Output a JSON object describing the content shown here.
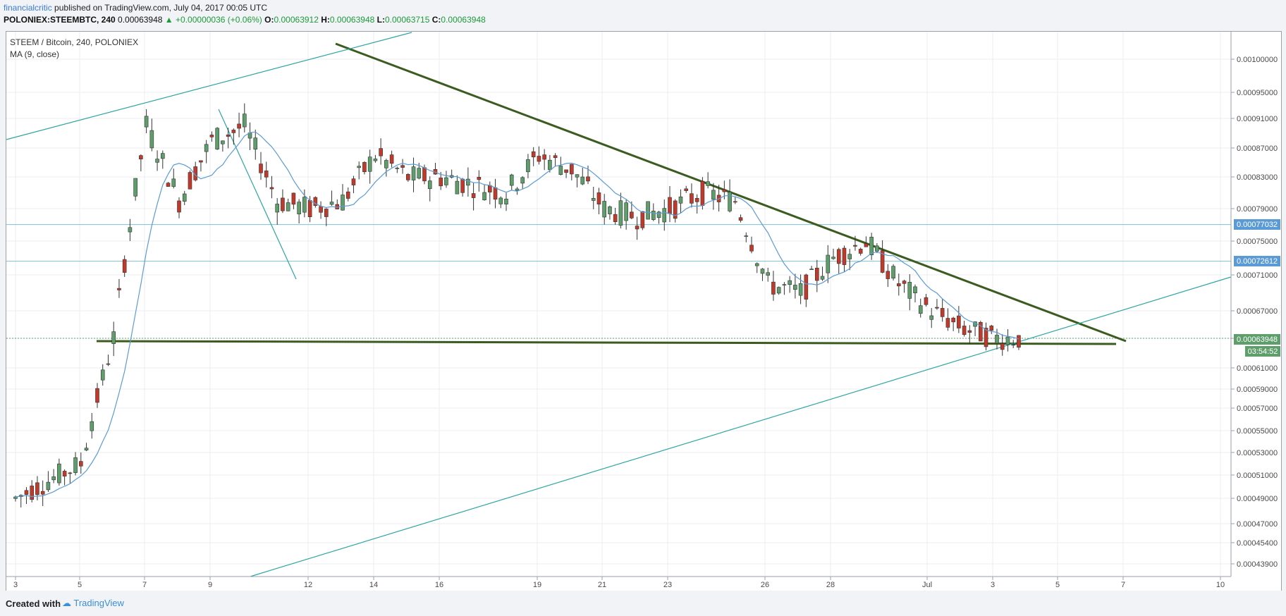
{
  "header": {
    "author": "financialcritic",
    "published_text": "published on TradingView.com, July 04, 2017 00:05 UTC",
    "symbol": "POLONIEX:STEEMBTC, 240",
    "last_price": "0.00063948",
    "change": "+0.00000036 (+0.06%)",
    "o_label": "O:",
    "o_value": "0.00063912",
    "h_label": "H:",
    "h_value": "0.00063948",
    "l_label": "L:",
    "l_value": "0.00063715",
    "c_label": "C:",
    "c_value": "0.00063948"
  },
  "legend": {
    "title": "STEEM / Bitcoin, 240, POLONIEX",
    "indicator": "MA (9, close)"
  },
  "price_labels": {
    "level1": "0.00077032",
    "level2": "0.00072612",
    "current": "0.00063948",
    "countdown": "03:54:52"
  },
  "footer": {
    "created_with": "Created with",
    "brand": "TradingView"
  },
  "colors": {
    "up": "#5d9e6b",
    "down": "#c0392b",
    "ma": "#5b9bd5",
    "trend_dark": "#3b5b1f",
    "channel": "#2ea6a0",
    "hline": "#7fbfd0"
  },
  "chart_data": {
    "type": "candlestick",
    "symbol": "STEEM / Bitcoin",
    "timeframe": "240",
    "exchange": "POLONIEX",
    "y_ticks": [
      "0.00100000",
      "0.00095000",
      "0.00091000",
      "0.00087000",
      "0.00083000",
      "0.00079000",
      "0.00075000",
      "0.00071000",
      "0.00067000",
      "0.00063948",
      "0.00061000",
      "0.00059000",
      "0.00057000",
      "0.00055000",
      "0.00053000",
      "0.00051000",
      "0.00049000",
      "0.00047000",
      "0.00045400",
      "0.00043900"
    ],
    "x_ticks": [
      "3",
      "5",
      "7",
      "9",
      "12",
      "14",
      "16",
      "19",
      "21",
      "23",
      "26",
      "28",
      "Jul",
      "3",
      "5",
      "7",
      "10"
    ],
    "horizontal_levels": [
      0.00077032,
      0.00072612
    ],
    "support_level": 0.00063948,
    "indicator": "MA (9, close)",
    "candles_daily_approx": [
      {
        "day": "Jun 3",
        "close": 0.00049
      },
      {
        "day": "Jun 5",
        "close": 0.00052
      },
      {
        "day": "Jun 6",
        "close": 0.00064
      },
      {
        "day": "Jun 7",
        "close": 0.0009
      },
      {
        "day": "Jun 8",
        "close": 0.0008
      },
      {
        "day": "Jun 9",
        "close": 0.00088
      },
      {
        "day": "Jun 10",
        "close": 0.0009
      },
      {
        "day": "Jun 11",
        "close": 0.0008
      },
      {
        "day": "Jun 12",
        "close": 0.00079
      },
      {
        "day": "Jun 13",
        "close": 0.0008
      },
      {
        "day": "Jun 14",
        "close": 0.00086
      },
      {
        "day": "Jun 15",
        "close": 0.00083
      },
      {
        "day": "Jun 16",
        "close": 0.00083
      },
      {
        "day": "Jun 17",
        "close": 0.00082
      },
      {
        "day": "Jun 18",
        "close": 0.00081
      },
      {
        "day": "Jun 19",
        "close": 0.00086
      },
      {
        "day": "Jun 20",
        "close": 0.00084
      },
      {
        "day": "Jun 21",
        "close": 0.00079
      },
      {
        "day": "Jun 22",
        "close": 0.00078
      },
      {
        "day": "Jun 23",
        "close": 0.00079
      },
      {
        "day": "Jun 24",
        "close": 0.00081
      },
      {
        "day": "Jun 25",
        "close": 0.0008
      },
      {
        "day": "Jun 26",
        "close": 0.0007
      },
      {
        "day": "Jun 27",
        "close": 0.00069
      },
      {
        "day": "Jun 28",
        "close": 0.00073
      },
      {
        "day": "Jun 29",
        "close": 0.00075
      },
      {
        "day": "Jun 30",
        "close": 0.0007
      },
      {
        "day": "Jul 1",
        "close": 0.00067
      },
      {
        "day": "Jul 2",
        "close": 0.00065
      },
      {
        "day": "Jul 3",
        "close": 0.00064
      },
      {
        "day": "Jul 4",
        "close": 0.00063948
      }
    ]
  }
}
